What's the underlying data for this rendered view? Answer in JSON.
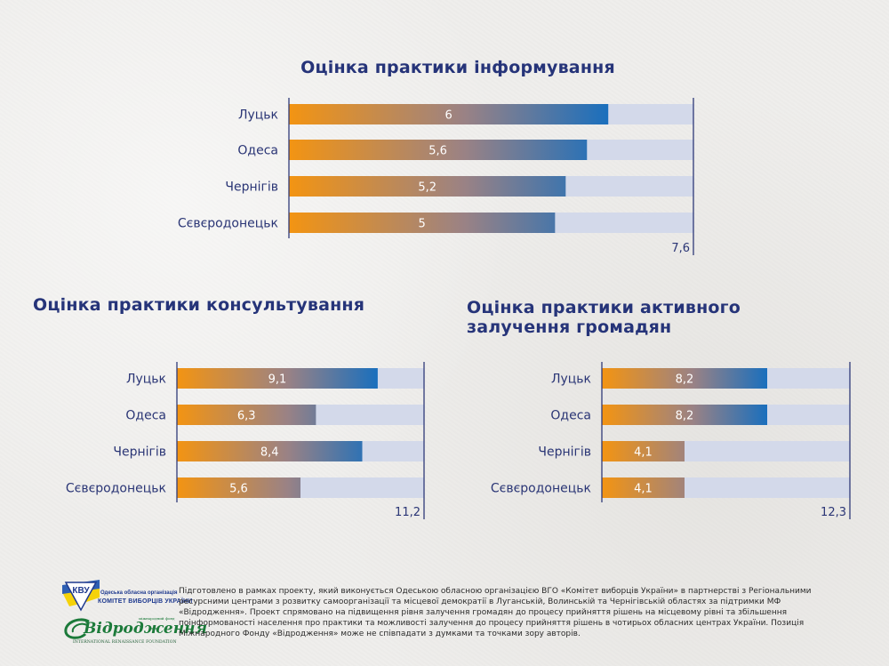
{
  "chart_data": [
    {
      "type": "bar",
      "orientation": "horizontal",
      "title": "Оцінка практики інформування",
      "categories": [
        "Луцьк",
        "Одеса",
        "Чернігів",
        "Сєвєродонецьк"
      ],
      "values": [
        6,
        5.6,
        5.2,
        5
      ],
      "value_labels": [
        "6",
        "5,6",
        "5,2",
        "5"
      ],
      "xlim": [
        0,
        7.6
      ],
      "max_label": "7,6",
      "xlabel": "",
      "ylabel": "",
      "grid": false,
      "legend": "none"
    },
    {
      "type": "bar",
      "orientation": "horizontal",
      "title": "Оцінка практики консультування",
      "categories": [
        "Луцьк",
        "Одеса",
        "Чернігів",
        "Сєвєродонецьк"
      ],
      "values": [
        9.1,
        6.3,
        8.4,
        5.6
      ],
      "value_labels": [
        "9,1",
        "6,3",
        "8,4",
        "5,6"
      ],
      "xlim": [
        0,
        11.2
      ],
      "max_label": "11,2",
      "xlabel": "",
      "ylabel": "",
      "grid": false,
      "legend": "none"
    },
    {
      "type": "bar",
      "orientation": "horizontal",
      "title": "Оцінка практики активного залучення громадян",
      "title_lines": [
        "Оцінка практики активного",
        "залучення громадян"
      ],
      "categories": [
        "Луцьк",
        "Одеса",
        "Чернігів",
        "Сєвєродонецьк"
      ],
      "values": [
        8.2,
        8.2,
        4.1,
        4.1
      ],
      "value_labels": [
        "8,2",
        "8,2",
        "4,1",
        "4,1"
      ],
      "xlim": [
        0,
        12.3
      ],
      "max_label": "12,3",
      "xlabel": "",
      "ylabel": "",
      "grid": false,
      "legend": "none"
    }
  ],
  "colors": {
    "title": "#263479",
    "label": "#2a3575",
    "axis": "#2f3a78",
    "bar_start": "#f39412",
    "bar_mid": "#9a8285",
    "bar_end": "#1a6fbd",
    "track": "#d3d9ea",
    "value_text": "#ffffff"
  },
  "footer": {
    "text": "Підготовлено в рамках проекту, який виконується Одеською обласною організацією ВГО «Комітет виборців України» в партнерстві з Регіональними ресурсними центрами з розвитку самоорганізації та місцевої демократії в Луганській, Волинській та Чернігівській областях за підтримки МФ «Відродження». Проект спрямовано на підвищення рівня залучення громадян до процесу прийняття рішень на місцевому рівні та збільшення поінформованості населення про практики та можливості залучення до процесу прийняття рішень в чотирьох обласних центрах України. Позиція Міжнародного Фонду «Відродження» може не співпадати з думками та точками зору авторів.",
    "logo_cvu": {
      "emblem_text": "КВУ",
      "line1": "Одеська обласна організація",
      "line2": "КОМІТЕТ ВИБОРЦІВ УКРАЇНИ"
    },
    "logo_vidrodzhennia": {
      "name": "Відродження",
      "small": "міжнародний фонд",
      "sub": "INTERNATIONAL RENAISSANCE FOUNDATION"
    }
  }
}
